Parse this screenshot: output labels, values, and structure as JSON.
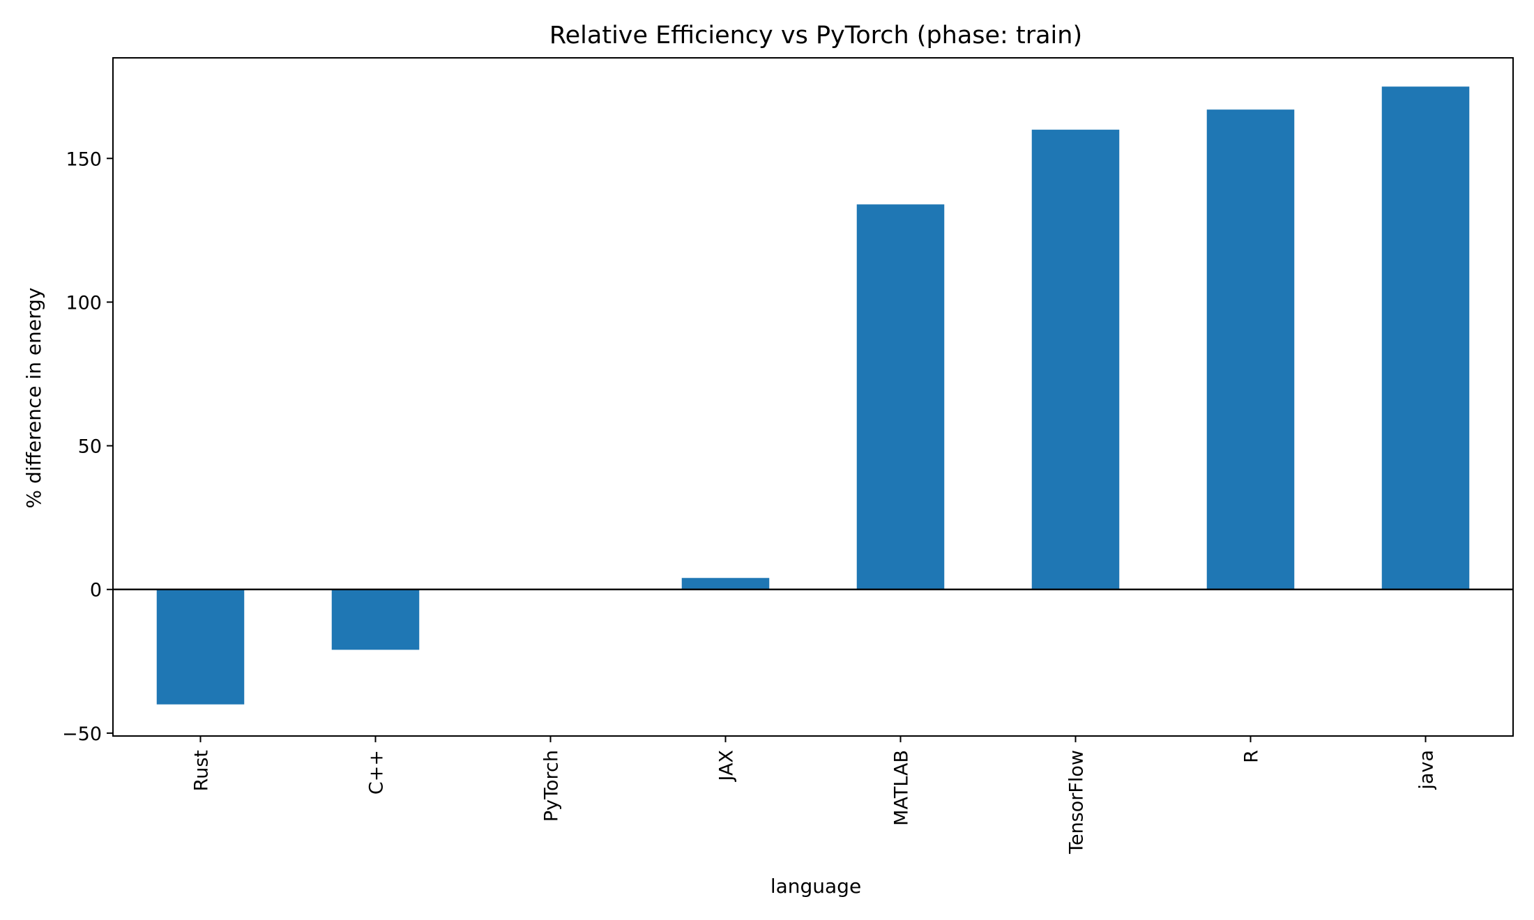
{
  "chart_data": {
    "type": "bar",
    "title": "Relative Efficiency vs PyTorch (phase: train)",
    "xlabel": "language",
    "ylabel": "% difference in energy",
    "categories": [
      "Rust",
      "C++",
      "PyTorch",
      "JAX",
      "MATLAB",
      "TensorFlow",
      "R",
      "java"
    ],
    "values": [
      -40,
      -21,
      0,
      4,
      134,
      160,
      167,
      175
    ],
    "ylim": [
      -51,
      185
    ],
    "yticks": [
      -50,
      0,
      50,
      100,
      150
    ],
    "ytick_labels": [
      "−50",
      "0",
      "50",
      "100",
      "150"
    ],
    "zero_line": true,
    "grid": false,
    "legend": false,
    "colors": {
      "bar": "#1f77b4",
      "axis": "#000000"
    }
  }
}
